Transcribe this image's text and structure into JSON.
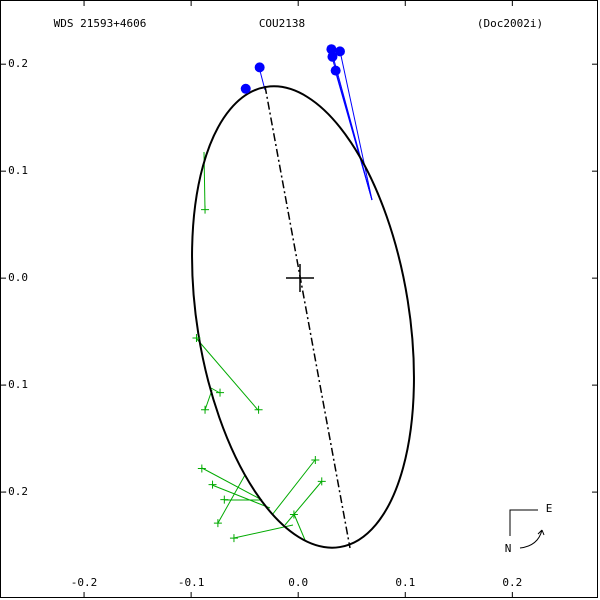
{
  "chart_data": {
    "type": "scatter",
    "title": "WDS 21593+4606",
    "subtitle": "COU2138",
    "reference": "(Doc2002i)",
    "compass": {
      "east": "E",
      "north": "N"
    },
    "xlim": [
      -0.2785,
      0.28
    ],
    "ylim": [
      -0.299,
      0.26
    ],
    "xticks": [
      -0.2,
      -0.1,
      {
        "value": 0,
        "label": "0.0"
      },
      0.1,
      0.2
    ],
    "yticks": [
      0.2,
      0.1,
      {
        "value": 0,
        "label": "0.0"
      },
      -0.1,
      -0.2
    ],
    "series": [
      {
        "color": "#0000ff",
        "marker": "circle",
        "x": [
          -0.049,
          -0.036,
          0.031,
          0.039,
          0.032,
          0.035
        ],
        "y": [
          0.177,
          0.197,
          0.214,
          0.212,
          0.207,
          0.194
        ]
      },
      {
        "color": "#00aa00",
        "marker": "plus",
        "x": [
          -0.087,
          -0.095,
          -0.087,
          -0.073,
          -0.037,
          -0.09,
          -0.08,
          -0.069,
          -0.075,
          -0.06,
          -0.004,
          0.016,
          0.022
        ],
        "y": [
          0.064,
          -0.056,
          -0.123,
          -0.107,
          -0.123,
          -0.178,
          -0.193,
          -0.207,
          -0.229,
          -0.243,
          -0.221,
          -0.17,
          -0.19
        ]
      }
    ]
  }
}
